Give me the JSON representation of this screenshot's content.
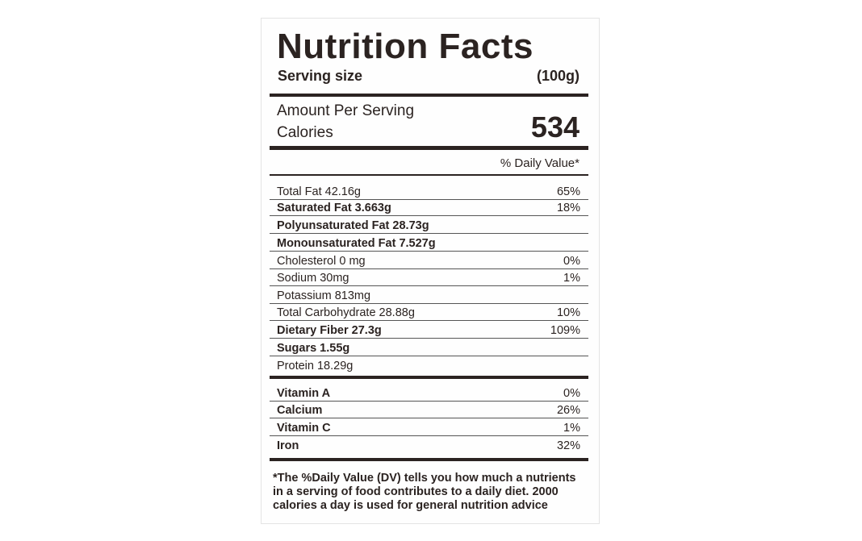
{
  "label": {
    "title": "Nutrition Facts",
    "serving_size_label": "Serving size",
    "serving_size": "(100g)",
    "amount_per_serving": "Amount Per Serving",
    "calories_label": "Calories",
    "calories": "534",
    "daily_value_header": "% Daily Value*",
    "nutrients": [
      {
        "name": "Total Fat 42.16g",
        "daily_value": "65%"
      },
      {
        "name": "Saturated Fat 3.663g",
        "daily_value": "18%"
      },
      {
        "name": "Polyunsaturated Fat 28.73g"
      },
      {
        "name": "Monounsaturated Fat 7.527g"
      },
      {
        "name": "Cholesterol 0 mg",
        "daily_value": "0%"
      },
      {
        "name": "Sodium 30mg",
        "daily_value": "1%"
      },
      {
        "name": "Potassium 813mg"
      },
      {
        "name": "Total Carbohydrate 28.88g",
        "daily_value": "10%"
      },
      {
        "name": "Dietary Fiber 27.3g",
        "daily_value": "109%"
      },
      {
        "name": "Sugars 1.55g"
      },
      {
        "name": "Protein 18.29g"
      }
    ],
    "vitamins": [
      {
        "name": "Vitamin A",
        "daily_value": "0%"
      },
      {
        "name": "Calcium",
        "daily_value": "26%"
      },
      {
        "name": "Vitamin C",
        "daily_value": "1%"
      },
      {
        "name": "Iron",
        "daily_value": "32%"
      }
    ],
    "footnote": [
      "*The %Daily Value (DV) tells you how much a nutrients",
      "in a serving of food contributes to a daily diet. 2000",
      "calories a day is used for general nutrition advice"
    ]
  }
}
